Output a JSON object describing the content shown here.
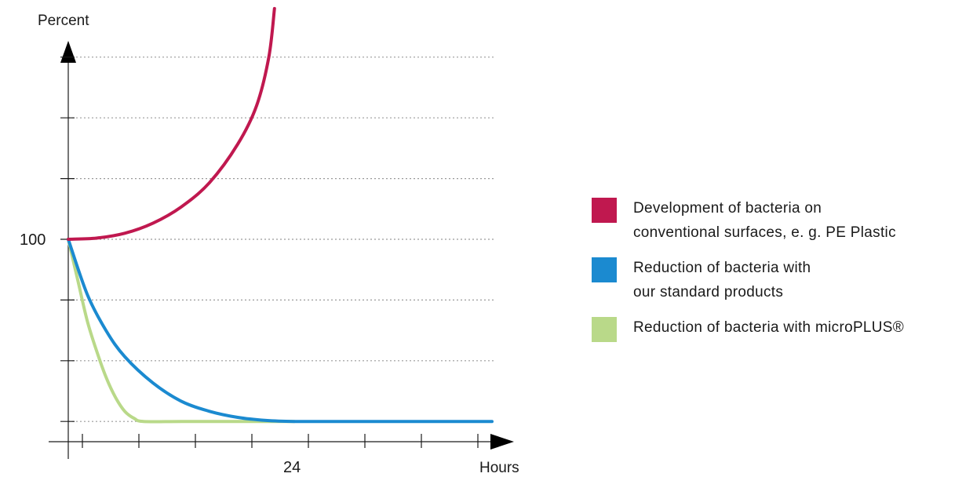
{
  "chart_data": {
    "type": "line",
    "ylabel": "Percent",
    "xlabel": "Hours",
    "y_tick_labels": [
      {
        "value": 100,
        "label": "100"
      }
    ],
    "x_tick_labels": [
      {
        "value": 24,
        "label": "24"
      }
    ],
    "xlim": [
      0,
      45
    ],
    "ylim": [
      0,
      220
    ],
    "grid": true,
    "legend_position": "right",
    "series": [
      {
        "name": "Development of bacteria on conventional surfaces, e. g. PE Plastic",
        "name_lines": [
          "Development of bacteria on",
          "conventional surfaces, e. g. PE Plastic"
        ],
        "color": "#c0184f",
        "points": [
          [
            0,
            100
          ],
          [
            3,
            100.6
          ],
          [
            6,
            103
          ],
          [
            9,
            108
          ],
          [
            12,
            116
          ],
          [
            15,
            128
          ],
          [
            18,
            147
          ],
          [
            20,
            166
          ],
          [
            21.3,
            190
          ],
          [
            21.9,
            214
          ]
        ]
      },
      {
        "name": "Reduction of bacteria with our standard products",
        "name_lines": [
          "Reduction of bacteria with",
          "our standard products"
        ],
        "color": "#1b8ad0",
        "points": [
          [
            0,
            100
          ],
          [
            2,
            73
          ],
          [
            4,
            55
          ],
          [
            6,
            42
          ],
          [
            9,
            29
          ],
          [
            12,
            20
          ],
          [
            15,
            15
          ],
          [
            18,
            12
          ],
          [
            21,
            10.5
          ],
          [
            24,
            10
          ],
          [
            30,
            10
          ],
          [
            36,
            10
          ],
          [
            45,
            10
          ]
        ]
      },
      {
        "name": "Reduction of bacteria with microPLUS®",
        "name_lines": [
          "Reduction of bacteria with microPLUS®"
        ],
        "color": "#b9d989",
        "points": [
          [
            0,
            100
          ],
          [
            1,
            80
          ],
          [
            2,
            60
          ],
          [
            3,
            45
          ],
          [
            4,
            32
          ],
          [
            5,
            22
          ],
          [
            6,
            15
          ],
          [
            7,
            11.5
          ],
          [
            8,
            10
          ],
          [
            12,
            10
          ],
          [
            18,
            10
          ],
          [
            24,
            10
          ]
        ]
      }
    ]
  }
}
